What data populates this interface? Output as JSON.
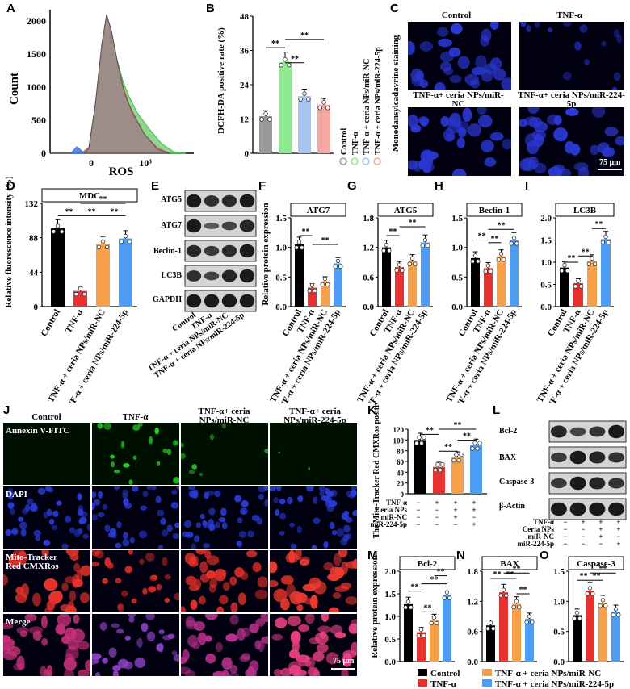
{
  "panels": {
    "A": "A",
    "B": "B",
    "C": "C",
    "D": "D",
    "E": "E",
    "F": "F",
    "G": "G",
    "H": "H",
    "I": "I",
    "J": "J",
    "K": "K",
    "L": "L",
    "M": "M",
    "N": "N",
    "O": "O"
  },
  "groups4": [
    "Control",
    "TNF-α",
    "TNF-α + ceria NPs/miR-NC",
    "TNF-α + ceria NPs/miR-224-5p"
  ],
  "colors": {
    "control": "#000000",
    "tnf": "#e8302f",
    "nc": "#f6a14a",
    "mir": "#4c9cf4",
    "gray": "#999999",
    "green": "#8ee88e",
    "blue": "#a8c5f0",
    "pink": "#f4a9a4"
  },
  "sig": "**",
  "A": {
    "ylabel": "Count",
    "xlabel": "ROS",
    "yticks": [
      "0",
      "500",
      "1000",
      "1500",
      "2000"
    ],
    "xticks": [
      "0",
      "10³"
    ]
  },
  "B": {
    "ylabel": "DCFH-DA positive rate (%)",
    "yticks": [
      "0",
      "12",
      "24",
      "36",
      "48"
    ],
    "legend": [
      "Control",
      "TNF-α",
      "TNF-α + ceria NPs/miR-NC",
      "TNF-α + ceria NPs/miR-224-5p"
    ]
  },
  "C": {
    "side_label": "Monodansylcadavrine staining",
    "titles": [
      "Control",
      "TNF-α",
      "TNF-α+ ceria NPs/miR-NC",
      "TNF-α+ ceria NPs/miR-224-5p"
    ],
    "scale": "75 μm"
  },
  "D": {
    "title": "MDC",
    "ylabel": "Relative fluorescence intensity (%)",
    "yticks": [
      "0",
      "44",
      "88",
      "132"
    ]
  },
  "E": {
    "bands": [
      "ATG5",
      "ATG7",
      "Beclin-1",
      "LC3B",
      "GAPDH"
    ]
  },
  "F": {
    "title": "ATG7",
    "ylabel": "Relative protein expression",
    "yticks": [
      "0.0",
      "0.5",
      "1.0",
      "1.5"
    ]
  },
  "G": {
    "title": "ATG5",
    "yticks": [
      "0.0",
      "0.6",
      "1.2",
      "1.8"
    ]
  },
  "H": {
    "title": "Beclin-1",
    "yticks": [
      "0.0",
      "0.5",
      "1.0",
      "1.5"
    ]
  },
  "I": {
    "title": "LC3B",
    "yticks": [
      "0.0",
      "0.5",
      "1.0",
      "1.5",
      "2.0"
    ]
  },
  "J": {
    "cols": [
      "Control",
      "TNF-α",
      "TNF-α+ ceria NPs/miR-NC",
      "TNF-α+ ceria NPs/miR-224-5p"
    ],
    "rows": [
      "Annexin V-FITC",
      "DAPI",
      "Mito-Tracker Red CMXRos",
      "Merge"
    ],
    "scale": "75 μm"
  },
  "K": {
    "ylabel": "The Mito-Tracker Red CMXRos positive cells (%)",
    "yticks": [
      "0",
      "20",
      "40",
      "60",
      "80",
      "100",
      "120"
    ]
  },
  "L": {
    "bands": [
      "Bcl-2",
      "BAX",
      "Caspase-3",
      "β-Actin"
    ]
  },
  "design": {
    "rows": [
      "TNF-α",
      "Ceria NPs",
      "miR-NC",
      "miR-224-5p"
    ],
    "marks": [
      [
        "−",
        "+",
        "+",
        "+"
      ],
      [
        "−",
        "−",
        "+",
        "+"
      ],
      [
        "−",
        "−",
        "+",
        "−"
      ],
      [
        "−",
        "−",
        "−",
        "+"
      ]
    ]
  },
  "M": {
    "title": "Bcl-2",
    "ylabel": "Relative protein expression",
    "yticks": [
      "0.0",
      "0.5",
      "1.0",
      "1.5",
      "2.0"
    ]
  },
  "N": {
    "title": "BAX",
    "yticks": [
      "0.0",
      "0.6",
      "1.2",
      "1.8"
    ]
  },
  "O": {
    "title": "Caspase-3",
    "yticks": [
      "0.0",
      "0.5",
      "1.0",
      "1.5"
    ]
  },
  "legend_bottom": [
    "Control",
    "TNF-α",
    "TNF-α + ceria NPs/miR-NC",
    "TNF-α + ceria NPs/miR-224-5p"
  ],
  "chart_data": [
    {
      "panel": "B",
      "type": "bar",
      "categories": [
        "Control",
        "TNF-α",
        "TNF-α + ceria NPs/miR-NC",
        "TNF-α + ceria NPs/miR-224-5p"
      ],
      "values": [
        13,
        32,
        20,
        17
      ],
      "ylim": [
        0,
        48
      ]
    },
    {
      "panel": "D",
      "type": "bar",
      "title": "MDC",
      "categories": [
        "Control",
        "TNF-α",
        "TNF-α + ceria NPs/miR-NC",
        "TNF-α + ceria NPs/miR-224-5p"
      ],
      "values": [
        100,
        20,
        80,
        87
      ],
      "ylim": [
        0,
        132
      ]
    },
    {
      "panel": "F",
      "type": "bar",
      "title": "ATG7",
      "categories": [
        "Control",
        "TNF-α",
        "TNF-α + ceria NPs/miR-NC",
        "TNF-α + ceria NPs/miR-224-5p"
      ],
      "values": [
        1.05,
        0.32,
        0.43,
        0.73
      ],
      "ylim": [
        0,
        1.5
      ]
    },
    {
      "panel": "G",
      "type": "bar",
      "title": "ATG5",
      "categories": [
        "Control",
        "TNF-α",
        "TNF-α + ceria NPs/miR-NC",
        "TNF-α + ceria NPs/miR-224-5p"
      ],
      "values": [
        1.2,
        0.8,
        0.93,
        1.3
      ],
      "ylim": [
        0,
        1.8
      ]
    },
    {
      "panel": "H",
      "type": "bar",
      "title": "Beclin-1",
      "categories": [
        "Control",
        "TNF-α",
        "TNF-α + ceria NPs/miR-NC",
        "TNF-α + ceria NPs/miR-224-5p"
      ],
      "values": [
        0.82,
        0.65,
        0.85,
        1.12
      ],
      "ylim": [
        0,
        1.5
      ]
    },
    {
      "panel": "I",
      "type": "bar",
      "title": "LC3B",
      "categories": [
        "Control",
        "TNF-α",
        "TNF-α + ceria NPs/miR-NC",
        "TNF-α + ceria NPs/miR-224-5p"
      ],
      "values": [
        0.88,
        0.53,
        1.03,
        1.52
      ],
      "ylim": [
        0,
        2.0
      ]
    },
    {
      "panel": "K",
      "type": "bar",
      "categories": [
        "Control",
        "TNF-α",
        "TNF-α + ceria NPs/miR-NC",
        "TNF-α + ceria NPs/miR-224-5p"
      ],
      "values": [
        100,
        50,
        68,
        90
      ],
      "ylim": [
        0,
        120
      ]
    },
    {
      "panel": "M",
      "type": "bar",
      "title": "Bcl-2",
      "categories": [
        "Control",
        "TNF-α",
        "TNF-α + ceria NPs/miR-NC",
        "TNF-α + ceria NPs/miR-224-5p"
      ],
      "values": [
        1.27,
        0.65,
        0.92,
        1.48
      ],
      "ylim": [
        0,
        2.0
      ]
    },
    {
      "panel": "N",
      "type": "bar",
      "title": "BAX",
      "categories": [
        "Control",
        "TNF-α",
        "TNF-α + ceria NPs/miR-NC",
        "TNF-α + ceria NPs/miR-224-5p"
      ],
      "values": [
        0.72,
        1.38,
        1.15,
        0.85
      ],
      "ylim": [
        0,
        1.8
      ]
    },
    {
      "panel": "O",
      "type": "bar",
      "title": "Caspase-3",
      "categories": [
        "Control",
        "TNF-α",
        "TNF-α + ceria NPs/miR-NC",
        "TNF-α + ceria NPs/miR-224-5p"
      ],
      "values": [
        0.77,
        1.18,
        0.98,
        0.83
      ],
      "ylim": [
        0,
        1.5
      ]
    }
  ]
}
